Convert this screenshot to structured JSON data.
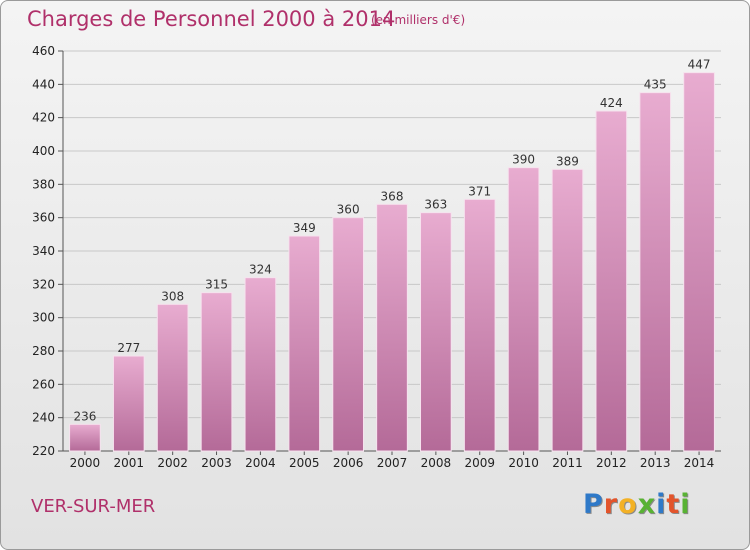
{
  "header": {
    "title": "Charges de Personnel 2000 à 2014",
    "subtitle": "(en milliers d'€)"
  },
  "footer": {
    "place": "VER-SUR-MER",
    "logo_letters": [
      "P",
      "r",
      "o",
      "x",
      "i",
      "t",
      "i"
    ]
  },
  "colors": {
    "title": "#b0306a",
    "bar_top": "#e8acd0",
    "bar_bottom": "#b46a98",
    "logo": [
      "#2f79c8",
      "#e3542b",
      "#f3b125",
      "#58b233",
      "#2f79c8",
      "#e3542b",
      "#58b233"
    ]
  },
  "chart_data": {
    "type": "bar",
    "categories": [
      "2000",
      "2001",
      "2002",
      "2003",
      "2004",
      "2005",
      "2006",
      "2007",
      "2008",
      "2009",
      "2010",
      "2011",
      "2012",
      "2013",
      "2014"
    ],
    "values": [
      236,
      277,
      308,
      315,
      324,
      349,
      360,
      368,
      363,
      371,
      390,
      389,
      424,
      435,
      447
    ],
    "data_labels": [
      "236",
      "277",
      "308",
      "315",
      "324",
      "349",
      "360",
      "368",
      "363",
      "371",
      "390",
      "389",
      "424",
      "435",
      "447"
    ],
    "title": "Charges de Personnel 2000 à 2014",
    "xlabel": "",
    "ylabel": "",
    "ylim": [
      220,
      460
    ],
    "yticks": [
      220,
      240,
      260,
      280,
      300,
      320,
      340,
      360,
      380,
      400,
      420,
      440,
      460
    ],
    "grid": true,
    "legend": "none"
  }
}
